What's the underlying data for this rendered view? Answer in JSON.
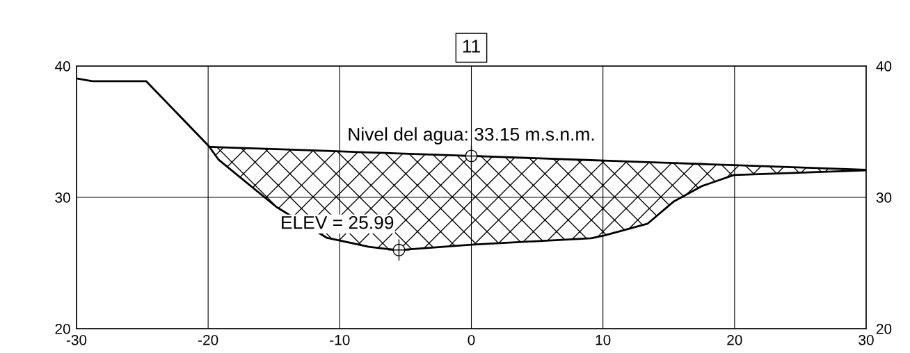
{
  "chart_data": {
    "type": "line",
    "title": "11",
    "x": [
      -30,
      -28.8,
      -24.7,
      -19.95,
      -19.2,
      -14.8,
      -11.0,
      -7.8,
      -6.5,
      -5.5,
      0,
      9.1,
      10.1,
      13.4,
      15.4,
      17.5,
      19.95,
      30
    ],
    "series": [
      {
        "color": "#000000",
        "values": [
          39.05,
          38.84,
          38.84,
          33.9,
          32.86,
          29.26,
          26.93,
          26.24,
          26.08,
          25.99,
          26.4,
          26.88,
          27.1,
          28.0,
          29.7,
          30.85,
          31.7,
          32.06
        ]
      },
      {
        "color": "#000000",
        "x": [
          -19.8,
          -19.2,
          -14.8,
          -11.0,
          -7.8,
          -6.5,
          -5.5,
          0,
          9.1,
          10.1,
          13.4,
          15.4,
          17.5,
          19.95,
          30
        ],
        "values": [
          33.84,
          33.82,
          33.67,
          33.54,
          33.42,
          33.38,
          33.34,
          33.15,
          32.83,
          32.8,
          32.68,
          32.61,
          32.54,
          32.45,
          32.1
        ],
        "lower": [
          33.7,
          32.86,
          29.26,
          26.93,
          26.24,
          26.08,
          25.99,
          26.4,
          26.88,
          27.1,
          28.0,
          29.7,
          30.85,
          31.7,
          32.06
        ],
        "upper": [
          33.84,
          33.82,
          33.67,
          33.54,
          33.42,
          33.38,
          33.34,
          33.15,
          32.83,
          32.8,
          32.68,
          32.61,
          32.54,
          32.45,
          32.1
        ]
      }
    ],
    "annotations": [
      {
        "text": "Nivel del agua: 33.15 m.s.n.m.",
        "x": 0,
        "y": 33.15
      },
      {
        "text": "ELEV = 25.99",
        "x": -5.5,
        "y": 25.99
      }
    ],
    "xlim": [
      -30,
      30
    ],
    "xticks": [
      -30,
      -20,
      -10,
      0,
      10,
      20,
      30
    ],
    "ylim": [
      20,
      40
    ],
    "yticks": [
      20,
      30,
      40
    ],
    "y2lim": [
      20,
      40
    ],
    "y2ticks": [
      20,
      30,
      40
    ],
    "grid": true,
    "line_style": "solid",
    "marker": "none"
  }
}
